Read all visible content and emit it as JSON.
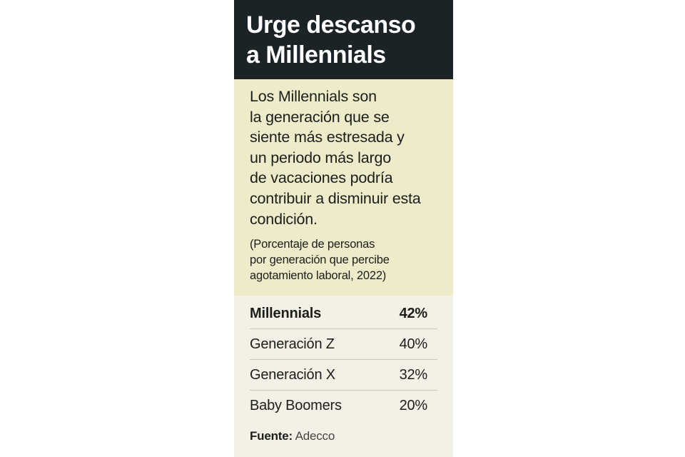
{
  "title_line1": "Urge descanso",
  "title_line2": "a Millennials",
  "description_lines": [
    "Los Millennials son",
    "la generación que se",
    "siente más estresada y",
    "un periodo más largo",
    "de vacaciones podría",
    "contribuir a disminuir esta",
    "condición."
  ],
  "note_lines": [
    "(Porcentaje de personas",
    "por generación que percibe",
    "agotamiento laboral, 2022)"
  ],
  "source_label": "Fuente:",
  "source_name": "Adecco",
  "colors": {
    "header_bg": "#1b2326",
    "intro_bg": "#edebc9",
    "table_bg": "#f3f1e6"
  },
  "chart_data": {
    "type": "table",
    "unit": "%",
    "rows": [
      {
        "label": "Millennials",
        "value": 42,
        "display": "42%",
        "bold": true
      },
      {
        "label": "Generación Z",
        "value": 40,
        "display": "40%",
        "bold": false
      },
      {
        "label": "Generación X",
        "value": 32,
        "display": "32%",
        "bold": false
      },
      {
        "label": "Baby Boomers",
        "value": 20,
        "display": "20%",
        "bold": false
      }
    ]
  }
}
